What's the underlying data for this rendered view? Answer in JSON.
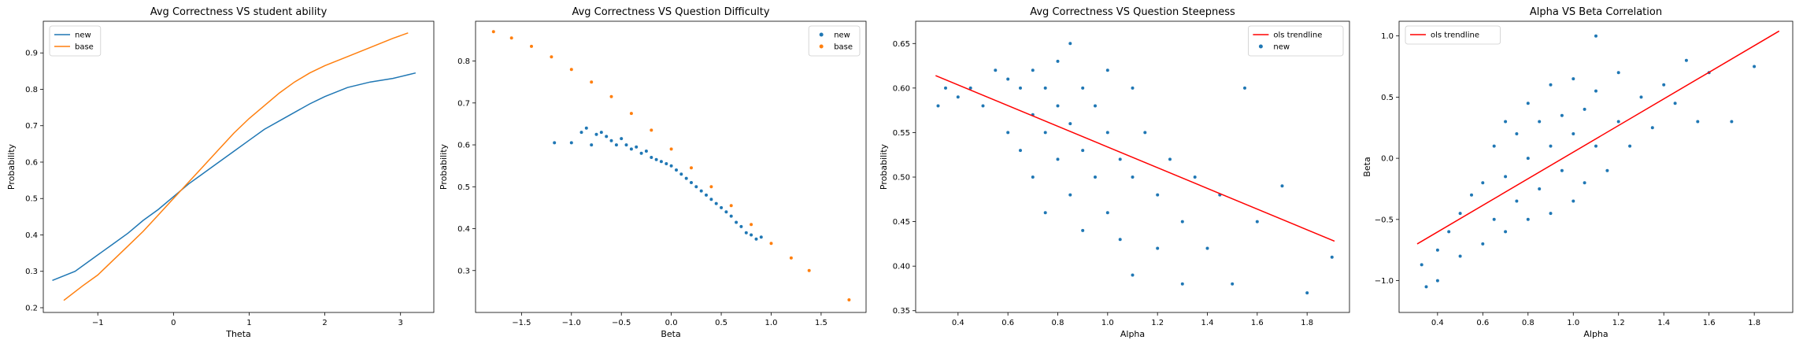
{
  "chart_data": [
    {
      "type": "line",
      "title": "Avg Correctness VS student ability",
      "xlabel": "Theta",
      "ylabel": "Probability",
      "xlim": [
        -1.72,
        3.44
      ],
      "ylim": [
        0.187,
        0.987
      ],
      "xticks": [
        -1,
        0,
        1,
        2,
        3
      ],
      "xtick_labels": [
        "−1",
        "0",
        "1",
        "2",
        "3"
      ],
      "yticks": [
        0.2,
        0.3,
        0.4,
        0.5,
        0.6,
        0.7,
        0.8,
        0.9
      ],
      "ytick_labels": [
        "0.2",
        "0.3",
        "0.4",
        "0.5",
        "0.6",
        "0.7",
        "0.8",
        "0.9"
      ],
      "legend_position": "top-left",
      "grid": false,
      "series": [
        {
          "name": "new",
          "color": "#1f77b4",
          "points": [
            [
              -1.6,
              0.275
            ],
            [
              -1.3,
              0.3
            ],
            [
              -1.0,
              0.345
            ],
            [
              -0.8,
              0.375
            ],
            [
              -0.6,
              0.405
            ],
            [
              -0.4,
              0.44
            ],
            [
              -0.2,
              0.47
            ],
            [
              0.0,
              0.505
            ],
            [
              0.2,
              0.54
            ],
            [
              0.5,
              0.585
            ],
            [
              0.8,
              0.63
            ],
            [
              1.0,
              0.66
            ],
            [
              1.2,
              0.69
            ],
            [
              1.5,
              0.725
            ],
            [
              1.8,
              0.76
            ],
            [
              2.0,
              0.78
            ],
            [
              2.3,
              0.805
            ],
            [
              2.6,
              0.82
            ],
            [
              2.9,
              0.83
            ],
            [
              3.1,
              0.84
            ],
            [
              3.2,
              0.845
            ]
          ]
        },
        {
          "name": "base",
          "color": "#ff7f0e",
          "points": [
            [
              -1.45,
              0.22
            ],
            [
              -1.2,
              0.26
            ],
            [
              -1.0,
              0.29
            ],
            [
              -0.8,
              0.33
            ],
            [
              -0.6,
              0.37
            ],
            [
              -0.4,
              0.41
            ],
            [
              -0.2,
              0.455
            ],
            [
              0.0,
              0.5
            ],
            [
              0.2,
              0.545
            ],
            [
              0.4,
              0.59
            ],
            [
              0.6,
              0.635
            ],
            [
              0.8,
              0.68
            ],
            [
              1.0,
              0.72
            ],
            [
              1.2,
              0.755
            ],
            [
              1.4,
              0.79
            ],
            [
              1.6,
              0.82
            ],
            [
              1.8,
              0.845
            ],
            [
              2.0,
              0.865
            ],
            [
              2.3,
              0.89
            ],
            [
              2.6,
              0.915
            ],
            [
              2.9,
              0.94
            ],
            [
              3.1,
              0.955
            ]
          ]
        }
      ]
    },
    {
      "type": "scatter",
      "title": "Avg Correctness VS Question Difficulty",
      "xlabel": "Beta",
      "ylabel": "Probability",
      "xlim": [
        -1.96,
        1.95
      ],
      "ylim": [
        0.2,
        0.895
      ],
      "xticks": [
        -1.5,
        -1.0,
        -0.5,
        0.0,
        0.5,
        1.0,
        1.5
      ],
      "xtick_labels": [
        "−1.5",
        "−1.0",
        "−0.5",
        "0.0",
        "0.5",
        "1.0",
        "1.5"
      ],
      "yticks": [
        0.3,
        0.4,
        0.5,
        0.6,
        0.7,
        0.8
      ],
      "ytick_labels": [
        "0.3",
        "0.4",
        "0.5",
        "0.6",
        "0.7",
        "0.8"
      ],
      "legend_position": "top-right",
      "grid": false,
      "series": [
        {
          "name": "new",
          "color": "#1f77b4",
          "points": [
            [
              -1.17,
              0.605
            ],
            [
              -1.0,
              0.605
            ],
            [
              -0.9,
              0.63
            ],
            [
              -0.85,
              0.64
            ],
            [
              -0.8,
              0.6
            ],
            [
              -0.75,
              0.625
            ],
            [
              -0.7,
              0.63
            ],
            [
              -0.65,
              0.62
            ],
            [
              -0.6,
              0.61
            ],
            [
              -0.55,
              0.6
            ],
            [
              -0.5,
              0.615
            ],
            [
              -0.45,
              0.6
            ],
            [
              -0.4,
              0.59
            ],
            [
              -0.35,
              0.595
            ],
            [
              -0.3,
              0.58
            ],
            [
              -0.25,
              0.585
            ],
            [
              -0.2,
              0.57
            ],
            [
              -0.15,
              0.565
            ],
            [
              -0.1,
              0.56
            ],
            [
              -0.05,
              0.555
            ],
            [
              0.0,
              0.55
            ],
            [
              0.05,
              0.54
            ],
            [
              0.1,
              0.53
            ],
            [
              0.15,
              0.52
            ],
            [
              0.2,
              0.51
            ],
            [
              0.25,
              0.5
            ],
            [
              0.3,
              0.49
            ],
            [
              0.35,
              0.48
            ],
            [
              0.4,
              0.47
            ],
            [
              0.45,
              0.46
            ],
            [
              0.5,
              0.45
            ],
            [
              0.55,
              0.44
            ],
            [
              0.6,
              0.43
            ],
            [
              0.65,
              0.415
            ],
            [
              0.7,
              0.405
            ],
            [
              0.75,
              0.39
            ],
            [
              0.8,
              0.385
            ],
            [
              0.85,
              0.375
            ],
            [
              0.9,
              0.38
            ]
          ]
        },
        {
          "name": "base",
          "color": "#ff7f0e",
          "points": [
            [
              -1.78,
              0.87
            ],
            [
              -1.6,
              0.855
            ],
            [
              -1.4,
              0.835
            ],
            [
              -1.2,
              0.81
            ],
            [
              -1.0,
              0.78
            ],
            [
              -0.8,
              0.75
            ],
            [
              -0.6,
              0.715
            ],
            [
              -0.4,
              0.675
            ],
            [
              -0.2,
              0.635
            ],
            [
              0.0,
              0.59
            ],
            [
              0.2,
              0.545
            ],
            [
              0.4,
              0.5
            ],
            [
              0.6,
              0.455
            ],
            [
              0.8,
              0.41
            ],
            [
              1.0,
              0.365
            ],
            [
              1.2,
              0.33
            ],
            [
              1.38,
              0.3
            ],
            [
              1.78,
              0.23
            ]
          ]
        }
      ]
    },
    {
      "type": "scatter",
      "title": "Avg Correctness VS Question Steepness",
      "xlabel": "Alpha",
      "ylabel": "Probability",
      "xlim": [
        0.23,
        1.97
      ],
      "ylim": [
        0.348,
        0.675
      ],
      "xticks": [
        0.4,
        0.6,
        0.8,
        1.0,
        1.2,
        1.4,
        1.6,
        1.8
      ],
      "xtick_labels": [
        "0.4",
        "0.6",
        "0.8",
        "1.0",
        "1.2",
        "1.4",
        "1.6",
        "1.8"
      ],
      "yticks": [
        0.35,
        0.4,
        0.45,
        0.5,
        0.55,
        0.6,
        0.65
      ],
      "ytick_labels": [
        "0.35",
        "0.40",
        "0.45",
        "0.50",
        "0.55",
        "0.60",
        "0.65"
      ],
      "legend_position": "top-right",
      "grid": false,
      "trendline": {
        "name": "ols trendline",
        "color": "#ff0000",
        "points": [
          [
            0.31,
            0.614
          ],
          [
            1.91,
            0.428
          ]
        ]
      },
      "series": [
        {
          "name": "new",
          "color": "#1f77b4",
          "points": [
            [
              0.32,
              0.58
            ],
            [
              0.35,
              0.6
            ],
            [
              0.4,
              0.59
            ],
            [
              0.45,
              0.6
            ],
            [
              0.5,
              0.58
            ],
            [
              0.55,
              0.62
            ],
            [
              0.6,
              0.61
            ],
            [
              0.6,
              0.55
            ],
            [
              0.65,
              0.6
            ],
            [
              0.65,
              0.53
            ],
            [
              0.7,
              0.62
            ],
            [
              0.7,
              0.57
            ],
            [
              0.7,
              0.5
            ],
            [
              0.75,
              0.6
            ],
            [
              0.75,
              0.55
            ],
            [
              0.75,
              0.46
            ],
            [
              0.8,
              0.63
            ],
            [
              0.8,
              0.58
            ],
            [
              0.8,
              0.52
            ],
            [
              0.85,
              0.65
            ],
            [
              0.85,
              0.56
            ],
            [
              0.85,
              0.48
            ],
            [
              0.9,
              0.6
            ],
            [
              0.9,
              0.53
            ],
            [
              0.9,
              0.44
            ],
            [
              0.95,
              0.58
            ],
            [
              0.95,
              0.5
            ],
            [
              1.0,
              0.62
            ],
            [
              1.0,
              0.55
            ],
            [
              1.0,
              0.46
            ],
            [
              1.05,
              0.52
            ],
            [
              1.05,
              0.43
            ],
            [
              1.1,
              0.6
            ],
            [
              1.1,
              0.5
            ],
            [
              1.1,
              0.39
            ],
            [
              1.15,
              0.55
            ],
            [
              1.2,
              0.48
            ],
            [
              1.2,
              0.42
            ],
            [
              1.25,
              0.52
            ],
            [
              1.3,
              0.45
            ],
            [
              1.3,
              0.38
            ],
            [
              1.35,
              0.5
            ],
            [
              1.4,
              0.42
            ],
            [
              1.45,
              0.48
            ],
            [
              1.5,
              0.38
            ],
            [
              1.55,
              0.6
            ],
            [
              1.6,
              0.45
            ],
            [
              1.7,
              0.49
            ],
            [
              1.8,
              0.37
            ],
            [
              1.9,
              0.41
            ]
          ]
        }
      ]
    },
    {
      "type": "scatter",
      "title": "Alpha VS Beta Correlation",
      "xlabel": "Alpha",
      "ylabel": "Beta",
      "xlim": [
        0.23,
        1.97
      ],
      "ylim": [
        -1.26,
        1.12
      ],
      "xticks": [
        0.4,
        0.6,
        0.8,
        1.0,
        1.2,
        1.4,
        1.6,
        1.8
      ],
      "xtick_labels": [
        "0.4",
        "0.6",
        "0.8",
        "1.0",
        "1.2",
        "1.4",
        "1.6",
        "1.8"
      ],
      "yticks": [
        -1.0,
        -0.5,
        0.0,
        0.5,
        1.0
      ],
      "ytick_labels": [
        "−1.0",
        "−0.5",
        "0.0",
        "0.5",
        "1.0"
      ],
      "legend_position": "top-left",
      "grid": false,
      "trendline": {
        "name": "ols trendline",
        "color": "#ff0000",
        "points": [
          [
            0.31,
            -0.7
          ],
          [
            1.91,
            1.04
          ]
        ]
      },
      "series": [
        {
          "name": "",
          "color": "#1f77b4",
          "points": [
            [
              0.33,
              -0.87
            ],
            [
              0.35,
              -1.05
            ],
            [
              0.4,
              -1.0
            ],
            [
              0.4,
              -0.75
            ],
            [
              0.45,
              -0.6
            ],
            [
              0.5,
              -0.8
            ],
            [
              0.5,
              -0.45
            ],
            [
              0.55,
              -0.3
            ],
            [
              0.6,
              -0.7
            ],
            [
              0.6,
              -0.2
            ],
            [
              0.65,
              -0.5
            ],
            [
              0.65,
              0.1
            ],
            [
              0.7,
              -0.6
            ],
            [
              0.7,
              -0.15
            ],
            [
              0.7,
              0.3
            ],
            [
              0.75,
              -0.35
            ],
            [
              0.75,
              0.2
            ],
            [
              0.8,
              -0.5
            ],
            [
              0.8,
              0.0
            ],
            [
              0.8,
              0.45
            ],
            [
              0.85,
              -0.25
            ],
            [
              0.85,
              0.3
            ],
            [
              0.9,
              -0.45
            ],
            [
              0.9,
              0.1
            ],
            [
              0.9,
              0.6
            ],
            [
              0.95,
              -0.1
            ],
            [
              0.95,
              0.35
            ],
            [
              1.0,
              -0.35
            ],
            [
              1.0,
              0.2
            ],
            [
              1.0,
              0.65
            ],
            [
              1.05,
              -0.2
            ],
            [
              1.05,
              0.4
            ],
            [
              1.1,
              0.1
            ],
            [
              1.1,
              0.55
            ],
            [
              1.15,
              -0.1
            ],
            [
              1.2,
              0.3
            ],
            [
              1.2,
              0.7
            ],
            [
              1.25,
              0.1
            ],
            [
              1.3,
              0.5
            ],
            [
              1.35,
              0.25
            ],
            [
              1.4,
              0.6
            ],
            [
              1.45,
              0.45
            ],
            [
              1.5,
              0.8
            ],
            [
              1.55,
              0.3
            ],
            [
              1.6,
              0.7
            ],
            [
              1.7,
              0.3
            ],
            [
              1.8,
              0.75
            ],
            [
              1.1,
              1.0
            ]
          ]
        }
      ]
    }
  ]
}
